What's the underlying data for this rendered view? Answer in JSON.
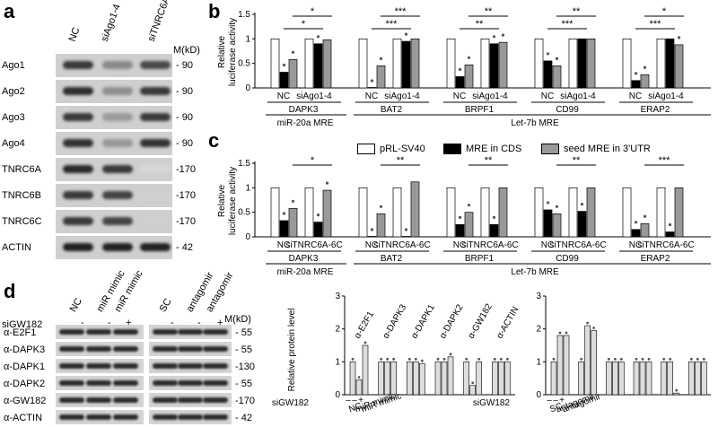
{
  "panel_a": {
    "label": "a",
    "columns": [
      "NC",
      "siAgo1-4",
      "siTNRC6A-6C"
    ],
    "unit": "M(kD)",
    "rows": [
      {
        "name": "Ago1",
        "marker": "- 90"
      },
      {
        "name": "Ago2",
        "marker": "- 90"
      },
      {
        "name": "Ago3",
        "marker": "- 90"
      },
      {
        "name": "Ago4",
        "marker": "- 90"
      },
      {
        "name": "TNRC6A",
        "marker": "-170"
      },
      {
        "name": "TNRC6B",
        "marker": "-170"
      },
      {
        "name": "TNRC6C",
        "marker": "-170"
      },
      {
        "name": "ACTIN",
        "marker": "- 42"
      }
    ]
  },
  "panel_b": {
    "label": "b",
    "ylabel": "Relative luciferase activity",
    "groups": [
      "DAPK3",
      "BAT2",
      "BRPF1",
      "CD99",
      "ERAP2"
    ],
    "xtick_left": "NC",
    "xtick_right": "siAgo1-4",
    "sig": [
      "*",
      "*",
      "***",
      "***",
      "**",
      "**",
      "**",
      "***",
      "*",
      "***"
    ],
    "mre_left": "miR-20a MRE",
    "mre_right": "Let-7b MRE"
  },
  "panel_c": {
    "label": "c",
    "ylabel": "Relative luciferase activity",
    "legend": [
      "pRL-SV40",
      "MRE in CDS",
      "seed MRE in 3'UTR"
    ],
    "groups": [
      "DAPK3",
      "BAT2",
      "BRPF1",
      "CD99",
      "ERAP2"
    ],
    "xtick_left": "NC",
    "xtick_right": "siTNRC6A-6C",
    "sig": [
      "*",
      "**",
      "**",
      "**",
      "***"
    ],
    "mre_left": "miR-20a MRE",
    "mre_right": "Let-7b MRE"
  },
  "panel_d": {
    "label": "d",
    "lanes": [
      "NC",
      "miR mimic",
      "miR mimic",
      "SC",
      "antagomir",
      "antagomir"
    ],
    "si_label": "siGW182",
    "si_signs": [
      "-",
      "-",
      "+",
      "-",
      "-",
      "+"
    ],
    "unit": "M(kD)",
    "rows": [
      {
        "name": "α-E2F1",
        "marker": "- 55"
      },
      {
        "name": "α-DAPK3",
        "marker": "- 55"
      },
      {
        "name": "α-DAPK1",
        "marker": "-130"
      },
      {
        "name": "α-DAPK2",
        "marker": "- 55"
      },
      {
        "name": "α-GW182",
        "marker": "-170"
      },
      {
        "name": "α-ACTIN",
        "marker": "- 42"
      }
    ],
    "plot_ylabel": "Relative protein level",
    "plot_col_labels": [
      "α-E2F1",
      "α-DAPK3",
      "α-DAPK1",
      "α-DAPK2",
      "α-GW182",
      "α-ACTIN"
    ],
    "left_x": [
      "NC",
      "miR mimic",
      "miR mimic"
    ],
    "left_signs": [
      "–",
      "–",
      "+"
    ],
    "right_x": [
      "SC",
      "antagomir",
      "antagomir"
    ],
    "right_signs": [
      "–",
      "–",
      "+"
    ]
  },
  "chart_data": [
    {
      "type": "bar",
      "panel": "b",
      "ylabel": "Relative luciferase activity",
      "ylim": [
        0,
        1.5
      ],
      "yticks": [
        0,
        0.5,
        1,
        1.5
      ],
      "categories": [
        "DAPK3 NC",
        "DAPK3 siAgo1-4",
        "BAT2 NC",
        "BAT2 siAgo1-4",
        "BRPF1 NC",
        "BRPF1 siAgo1-4",
        "CD99 NC",
        "CD99 siAgo1-4",
        "ERAP2 NC",
        "ERAP2 siAgo1-4"
      ],
      "series": [
        {
          "name": "pRL-SV40",
          "values": [
            1,
            1,
            1,
            1,
            1,
            1,
            1,
            1,
            1,
            1
          ]
        },
        {
          "name": "MRE in CDS",
          "values": [
            0.32,
            0.9,
            0.0,
            0.95,
            0.23,
            0.9,
            0.55,
            1.0,
            0.15,
            1.0
          ]
        },
        {
          "name": "seed MRE in 3'UTR",
          "values": [
            0.58,
            0.98,
            0.45,
            1.0,
            0.47,
            0.93,
            0.45,
            1.0,
            0.27,
            0.88
          ]
        }
      ]
    },
    {
      "type": "bar",
      "panel": "c",
      "ylabel": "Relative luciferase activity",
      "ylim": [
        0,
        1.5
      ],
      "yticks": [
        0,
        0.5,
        1,
        1.5
      ],
      "categories": [
        "DAPK3 NC",
        "DAPK3 siTNRC6A-6C",
        "BAT2 NC",
        "BAT2 siTNRC6A-6C",
        "BRPF1 NC",
        "BRPF1 siTNRC6A-6C",
        "CD99 NC",
        "CD99 siTNRC6A-6C",
        "ERAP2 NC",
        "ERAP2 siTNRC6A-6C"
      ],
      "series": [
        {
          "name": "pRL-SV40",
          "values": [
            1,
            1,
            1,
            1,
            1,
            1,
            1,
            1,
            1,
            1
          ]
        },
        {
          "name": "MRE in CDS",
          "values": [
            0.33,
            0.3,
            0.0,
            0.0,
            0.25,
            0.25,
            0.55,
            0.52,
            0.15,
            0.1
          ]
        },
        {
          "name": "seed MRE in 3'UTR",
          "values": [
            0.58,
            0.95,
            0.47,
            1.12,
            0.5,
            1.0,
            0.47,
            1.0,
            0.27,
            1.0
          ]
        }
      ]
    },
    {
      "type": "bar",
      "panel": "d-left",
      "ylabel": "Relative protein level",
      "ylim": [
        0,
        3
      ],
      "yticks": [
        0,
        1,
        2,
        3
      ],
      "categories": [
        "α-E2F1",
        "α-DAPK3",
        "α-DAPK1",
        "α-DAPK2",
        "α-GW182",
        "α-ACTIN"
      ],
      "series": [
        {
          "name": "NC",
          "values": [
            1,
            1,
            1,
            1,
            1,
            1
          ]
        },
        {
          "name": "miR mimic",
          "values": [
            0.45,
            1.0,
            1.0,
            1.0,
            0.28,
            1.0
          ]
        },
        {
          "name": "miR mimic",
          "values": [
            1.5,
            1.0,
            0.95,
            1.15,
            1.0,
            1.0
          ]
        }
      ]
    },
    {
      "type": "bar",
      "panel": "d-right",
      "ylabel": "",
      "ylim": [
        0,
        3
      ],
      "yticks": [
        0,
        1,
        2,
        3
      ],
      "categories": [
        "α-E2F1",
        "α-DAPK3",
        "α-DAPK1",
        "α-DAPK2",
        "α-GW182",
        "α-ACTIN"
      ],
      "series": [
        {
          "name": "SC",
          "values": [
            1,
            1,
            1,
            1,
            1,
            1
          ]
        },
        {
          "name": "antagomir",
          "values": [
            1.8,
            2.1,
            1.0,
            1.0,
            1.0,
            1.0
          ]
        },
        {
          "name": "antagomir",
          "values": [
            1.8,
            1.95,
            1.0,
            1.0,
            0.05,
            1.0
          ]
        }
      ]
    }
  ]
}
